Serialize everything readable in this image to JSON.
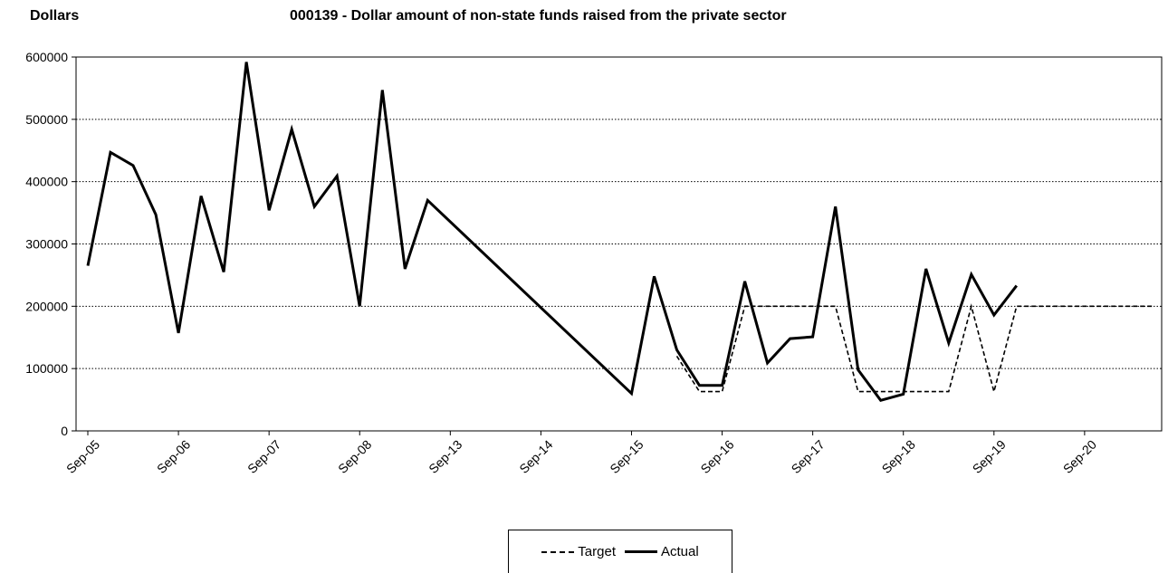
{
  "header": {
    "y_unit": "Dollars",
    "title": "000139 - Dollar amount of non-state funds raised from the private sector"
  },
  "chart_data": {
    "type": "line",
    "title": "000139 - Dollar amount of non-state funds raised from the private sector",
    "ylabel": "Dollars",
    "ylim": [
      0,
      600000
    ],
    "yticks": [
      "0",
      "100000",
      "200000",
      "300000",
      "400000",
      "500000",
      "600000"
    ],
    "grid": "horizontal-dotted",
    "legend_position": "bottom-center",
    "x_tick_labels": [
      "Sep-05",
      "Sep-06",
      "Sep-07",
      "Sep-08",
      "Sep-13",
      "Sep-14",
      "Sep-15",
      "Sep-16",
      "Sep-17",
      "Sep-18",
      "Sep-19",
      "Sep-20"
    ],
    "series": [
      {
        "name": "Actual",
        "style": "solid",
        "points": [
          [
            0,
            265000
          ],
          [
            1,
            447000
          ],
          [
            2,
            426000
          ],
          [
            3,
            347000
          ],
          [
            4,
            157000
          ],
          [
            5,
            377000
          ],
          [
            6,
            255000
          ],
          [
            7,
            592000
          ],
          [
            8,
            354000
          ],
          [
            9,
            484000
          ],
          [
            10,
            360000
          ],
          [
            11,
            409000
          ],
          [
            12,
            200000
          ],
          [
            13,
            547000
          ],
          [
            14,
            260000
          ],
          [
            15,
            370000
          ],
          [
            24,
            60000
          ],
          [
            25,
            248000
          ],
          [
            26,
            130000
          ],
          [
            27,
            73000
          ],
          [
            28,
            73000
          ],
          [
            29,
            240000
          ],
          [
            30,
            109000
          ],
          [
            31,
            148000
          ],
          [
            32,
            151000
          ],
          [
            33,
            360000
          ],
          [
            34,
            98000
          ],
          [
            35,
            49000
          ],
          [
            36,
            59000
          ],
          [
            37,
            260000
          ],
          [
            38,
            141000
          ],
          [
            39,
            251000
          ],
          [
            40,
            186000
          ],
          [
            41,
            233000
          ]
        ]
      },
      {
        "name": "Target",
        "style": "dashed",
        "points": [
          [
            26,
            120000
          ],
          [
            27,
            63000
          ],
          [
            28,
            63000
          ],
          [
            29,
            200000
          ],
          [
            30,
            200000
          ],
          [
            31,
            200000
          ],
          [
            32,
            200000
          ],
          [
            33,
            200000
          ],
          [
            34,
            63000
          ],
          [
            35,
            63000
          ],
          [
            36,
            63000
          ],
          [
            37,
            63000
          ],
          [
            38,
            63000
          ],
          [
            39,
            200000
          ],
          [
            40,
            63000
          ],
          [
            41,
            200000
          ],
          [
            42,
            200000
          ],
          [
            43,
            200000
          ],
          [
            44,
            200000
          ],
          [
            45,
            200000
          ],
          [
            46,
            200000
          ],
          [
            47,
            200000
          ]
        ]
      }
    ]
  },
  "legend": {
    "target_label": "Target",
    "actual_label": "Actual"
  }
}
